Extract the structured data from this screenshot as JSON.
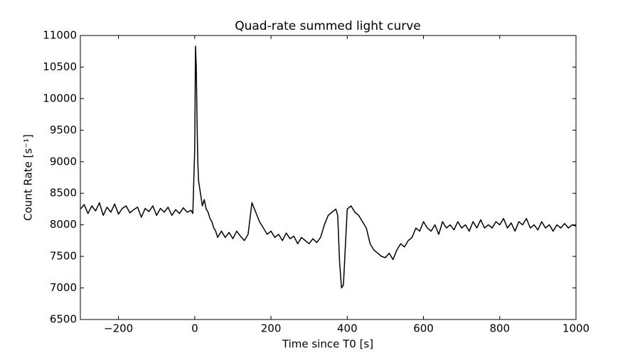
{
  "chart_data": {
    "type": "line",
    "title": "Quad-rate summed light curve",
    "xlabel": "Time since T0 [s]",
    "ylabel": "Count Rate [s⁻¹]",
    "xlim": [
      -300,
      1000
    ],
    "ylim": [
      6500,
      11000
    ],
    "xticks": [
      {
        "value": -200,
        "label": "−200"
      },
      0,
      200,
      400,
      600,
      800,
      1000
    ],
    "yticks": [
      6500,
      7000,
      7500,
      8000,
      8500,
      9000,
      9500,
      10000,
      10500,
      11000
    ],
    "series": [
      {
        "color": "#000000",
        "x": [
          -300,
          -290,
          -280,
          -270,
          -260,
          -250,
          -240,
          -230,
          -220,
          -210,
          -200,
          -190,
          -180,
          -170,
          -160,
          -150,
          -140,
          -130,
          -120,
          -110,
          -100,
          -90,
          -80,
          -70,
          -60,
          -50,
          -40,
          -30,
          -20,
          -10,
          -5,
          0,
          2,
          4,
          6,
          8,
          10,
          15,
          20,
          25,
          30,
          35,
          40,
          45,
          50,
          55,
          60,
          70,
          80,
          90,
          100,
          110,
          120,
          130,
          140,
          150,
          160,
          170,
          180,
          190,
          200,
          210,
          220,
          230,
          240,
          250,
          260,
          270,
          280,
          290,
          300,
          310,
          320,
          330,
          340,
          350,
          360,
          370,
          375,
          380,
          385,
          390,
          395,
          400,
          410,
          420,
          430,
          440,
          450,
          460,
          470,
          480,
          490,
          500,
          510,
          520,
          530,
          540,
          550,
          560,
          570,
          580,
          590,
          600,
          610,
          620,
          630,
          640,
          650,
          660,
          670,
          680,
          690,
          700,
          710,
          720,
          730,
          740,
          750,
          760,
          770,
          780,
          790,
          800,
          810,
          820,
          830,
          840,
          850,
          860,
          870,
          880,
          890,
          900,
          910,
          920,
          930,
          940,
          950,
          960,
          970,
          980,
          990,
          1000
        ],
        "values": [
          8250,
          8320,
          8180,
          8300,
          8220,
          8350,
          8150,
          8280,
          8200,
          8330,
          8170,
          8260,
          8300,
          8190,
          8240,
          8280,
          8120,
          8260,
          8210,
          8300,
          8150,
          8260,
          8200,
          8280,
          8150,
          8240,
          8180,
          8270,
          8200,
          8230,
          8180,
          9200,
          10830,
          10500,
          9650,
          9000,
          8700,
          8500,
          8300,
          8400,
          8250,
          8200,
          8100,
          8050,
          7950,
          7900,
          7800,
          7900,
          7800,
          7880,
          7780,
          7900,
          7820,
          7750,
          7850,
          8350,
          8200,
          8050,
          7950,
          7850,
          7900,
          7800,
          7850,
          7750,
          7870,
          7780,
          7820,
          7700,
          7800,
          7750,
          7700,
          7780,
          7720,
          7800,
          8000,
          8150,
          8200,
          8250,
          8150,
          7400,
          7000,
          7050,
          7650,
          8250,
          8300,
          8200,
          8150,
          8050,
          7950,
          7700,
          7600,
          7550,
          7500,
          7480,
          7550,
          7450,
          7600,
          7700,
          7650,
          7750,
          7800,
          7950,
          7900,
          8050,
          7950,
          7900,
          8000,
          7850,
          8050,
          7950,
          8000,
          7920,
          8050,
          7950,
          8000,
          7900,
          8050,
          7950,
          8080,
          7950,
          8000,
          7950,
          8050,
          8000,
          8100,
          7950,
          8030,
          7900,
          8050,
          8000,
          8100,
          7950,
          8000,
          7920,
          8050,
          7950,
          8000,
          7900,
          8000,
          7950,
          8020,
          7950,
          8000,
          7980
        ]
      }
    ]
  }
}
